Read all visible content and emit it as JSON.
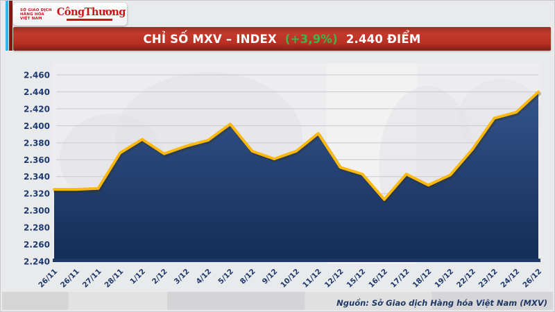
{
  "header": {
    "mxv_logo": {
      "org_lines": [
        "SỞ GIAO DỊCH",
        "HÀNG HÓA",
        "VIỆT NAM"
      ]
    },
    "congthuong_logo": {
      "text": "CôngThương"
    },
    "banner": {
      "title_main": "CHỈ SỐ MXV – INDEX",
      "title_change": "(+3,9%)",
      "title_value": "2.440 ĐIỂM"
    }
  },
  "footer": {
    "source": "Nguồn: Sở Giao dịch Hàng hóa Việt Nam (MXV)"
  },
  "colors": {
    "line": "#fbb80f",
    "line_shadow": "rgba(60,45,0,0.30)",
    "area_top": "#34548a",
    "area_bottom": "#142c58",
    "axis": "#1f3864",
    "grid": "#c9c9ce",
    "label": "#1f3a6e",
    "banner_red": "#c23b2d",
    "accent_green": "#3cb54a",
    "logo_blue": "#21a0dc",
    "logo_red": "#c4161c",
    "stripe_cyan": "#35b6ea",
    "stripe_maroon": "#7b1d18"
  },
  "chart_data": {
    "type": "area",
    "title": "CHỈ SỐ MXV – INDEX (+3,9%) 2.440 ĐIỂM",
    "series_name": "MXV-Index",
    "x": [
      "26/11",
      "26/11",
      "27/11",
      "28/11",
      "1/12",
      "2/12",
      "3/12",
      "4/12",
      "5/12",
      "8/12",
      "9/12",
      "10/12",
      "11/12",
      "12/12",
      "15/12",
      "16/12",
      "17/12",
      "18/12",
      "19/12",
      "22/12",
      "23/12",
      "24/12",
      "26/12"
    ],
    "values": [
      2325,
      2325,
      2326,
      2368,
      2384,
      2367,
      2376,
      2383,
      2402,
      2370,
      2361,
      2370,
      2391,
      2351,
      2343,
      2313,
      2343,
      2330,
      2342,
      2372,
      2409,
      2416,
      2440
    ],
    "ylim": [
      2240,
      2460
    ],
    "y_ticks": [
      2460,
      2440,
      2420,
      2400,
      2380,
      2360,
      2340,
      2320,
      2300,
      2280,
      2260,
      2240
    ],
    "y_tick_format": "thousands-dot",
    "grid": "horizontal",
    "legend": "none",
    "xlabel": "",
    "ylabel": ""
  }
}
